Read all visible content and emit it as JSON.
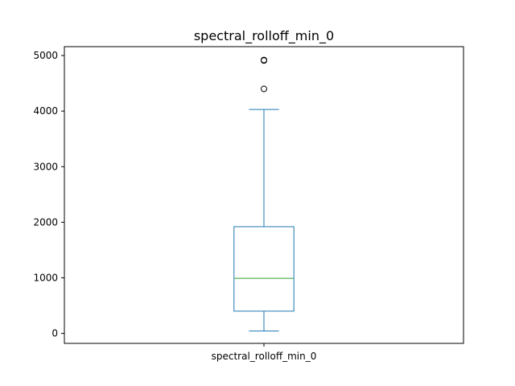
{
  "chart_data": {
    "type": "box",
    "title": "spectral_rolloff_min_0",
    "xlabel": "",
    "ylabel": "",
    "ylim": [
      -180,
      5160
    ],
    "yticks": [
      0,
      1000,
      2000,
      3000,
      4000,
      5000
    ],
    "grid": false,
    "categories": [
      "spectral_rolloff_min_0"
    ],
    "series": [
      {
        "whisker_low": 43,
        "q1": 400,
        "median": 990,
        "q3": 1920,
        "whisker_high": 4030,
        "outliers": [
          4400,
          4910,
          4920
        ]
      }
    ],
    "colors": {
      "box": "#1f77b4",
      "median": "#2ca02c",
      "outlier_edge": "#000000",
      "axes": "#000000"
    }
  }
}
